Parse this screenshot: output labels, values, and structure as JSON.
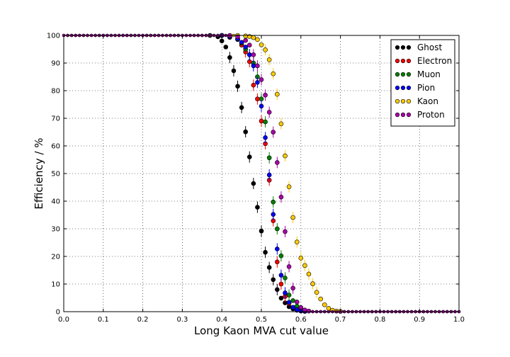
{
  "chart_data": {
    "type": "scatter",
    "title": "",
    "xlabel": "Long Kaon MVA cut value",
    "ylabel": "Efficiency / %",
    "xlim": [
      0.0,
      1.0
    ],
    "ylim": [
      0,
      100
    ],
    "xticks": [
      "0.0",
      "0.1",
      "0.2",
      "0.3",
      "0.4",
      "0.5",
      "0.6",
      "0.7",
      "0.8",
      "0.9",
      "1.0"
    ],
    "yticks": [
      "0",
      "10",
      "20",
      "30",
      "40",
      "50",
      "60",
      "70",
      "80",
      "90",
      "100"
    ],
    "grid": true,
    "legend_position": "top-right",
    "series": [
      {
        "name": "Ghost",
        "color": "#000000",
        "points": [
          [
            0.37,
            100
          ],
          [
            0.39,
            99.5
          ],
          [
            0.4,
            98
          ],
          [
            0.41,
            95.8
          ],
          [
            0.42,
            92
          ],
          [
            0.43,
            87.2
          ],
          [
            0.44,
            81.6
          ],
          [
            0.45,
            73.9
          ],
          [
            0.46,
            65.1
          ],
          [
            0.47,
            56
          ],
          [
            0.48,
            46.4
          ],
          [
            0.49,
            37.8
          ],
          [
            0.5,
            29.2
          ],
          [
            0.51,
            21.5
          ],
          [
            0.52,
            16
          ],
          [
            0.53,
            11.6
          ],
          [
            0.54,
            8
          ],
          [
            0.55,
            4.9
          ],
          [
            0.56,
            3.2
          ],
          [
            0.57,
            1.8
          ],
          [
            0.58,
            1
          ],
          [
            0.59,
            0.6
          ],
          [
            0.6,
            0.3
          ],
          [
            0.61,
            0.1
          ]
        ]
      },
      {
        "name": "Electron",
        "color": "#ff0000",
        "points": [
          [
            0.4,
            100
          ],
          [
            0.42,
            99.3
          ],
          [
            0.44,
            98.5
          ],
          [
            0.45,
            96.5
          ],
          [
            0.46,
            94
          ],
          [
            0.47,
            90.5
          ],
          [
            0.48,
            82
          ],
          [
            0.49,
            77
          ],
          [
            0.5,
            69
          ],
          [
            0.51,
            60.8
          ],
          [
            0.52,
            47.6
          ],
          [
            0.53,
            32.9
          ],
          [
            0.54,
            18
          ],
          [
            0.55,
            10
          ],
          [
            0.56,
            5.5
          ],
          [
            0.57,
            3
          ],
          [
            0.58,
            1.5
          ],
          [
            0.59,
            0.5
          ],
          [
            0.6,
            0.2
          ]
        ]
      },
      {
        "name": "Muon",
        "color": "#008000",
        "points": [
          [
            0.4,
            100
          ],
          [
            0.42,
            99.5
          ],
          [
            0.44,
            98.6
          ],
          [
            0.45,
            97.2
          ],
          [
            0.46,
            95
          ],
          [
            0.47,
            93
          ],
          [
            0.48,
            90
          ],
          [
            0.49,
            85
          ],
          [
            0.5,
            77
          ],
          [
            0.51,
            68.7
          ],
          [
            0.52,
            55.7
          ],
          [
            0.53,
            39.7
          ],
          [
            0.54,
            30
          ],
          [
            0.55,
            20.2
          ],
          [
            0.56,
            12.2
          ],
          [
            0.57,
            6
          ],
          [
            0.58,
            4
          ],
          [
            0.59,
            2
          ],
          [
            0.6,
            1
          ],
          [
            0.61,
            0.4
          ]
        ]
      },
      {
        "name": "Pion",
        "color": "#0000ff",
        "points": [
          [
            0.4,
            100
          ],
          [
            0.42,
            99.6
          ],
          [
            0.44,
            98.8
          ],
          [
            0.45,
            97.5
          ],
          [
            0.46,
            95.8
          ],
          [
            0.47,
            93
          ],
          [
            0.48,
            89
          ],
          [
            0.49,
            83
          ],
          [
            0.5,
            74.4
          ],
          [
            0.51,
            63
          ],
          [
            0.52,
            49.5
          ],
          [
            0.53,
            35.2
          ],
          [
            0.54,
            22.7
          ],
          [
            0.55,
            13.2
          ],
          [
            0.56,
            6.8
          ],
          [
            0.57,
            3.4
          ],
          [
            0.58,
            1.6
          ],
          [
            0.59,
            0.7
          ],
          [
            0.6,
            0.3
          ]
        ]
      },
      {
        "name": "Kaon",
        "color": "#ffcc00",
        "points": [
          [
            0.44,
            100
          ],
          [
            0.46,
            99.8
          ],
          [
            0.47,
            99.6
          ],
          [
            0.48,
            99.2
          ],
          [
            0.49,
            98.5
          ],
          [
            0.5,
            96.6
          ],
          [
            0.51,
            94.8
          ],
          [
            0.52,
            91.2
          ],
          [
            0.53,
            86.1
          ],
          [
            0.54,
            78.7
          ],
          [
            0.55,
            68
          ],
          [
            0.56,
            56.4
          ],
          [
            0.57,
            45.2
          ],
          [
            0.58,
            34.1
          ],
          [
            0.59,
            25.2
          ],
          [
            0.6,
            19.4
          ],
          [
            0.61,
            16.7
          ],
          [
            0.62,
            13.6
          ],
          [
            0.63,
            10.1
          ],
          [
            0.64,
            7
          ],
          [
            0.65,
            4.6
          ],
          [
            0.66,
            2.5
          ],
          [
            0.67,
            1.2
          ],
          [
            0.68,
            0.5
          ],
          [
            0.69,
            0.2
          ],
          [
            0.7,
            0.1
          ]
        ]
      },
      {
        "name": "Proton",
        "color": "#aa00aa",
        "points": [
          [
            0.42,
            100
          ],
          [
            0.44,
            99.5
          ],
          [
            0.46,
            98.2
          ],
          [
            0.47,
            96.5
          ],
          [
            0.48,
            93
          ],
          [
            0.49,
            89
          ],
          [
            0.5,
            84
          ],
          [
            0.51,
            78.4
          ],
          [
            0.52,
            72.2
          ],
          [
            0.53,
            65
          ],
          [
            0.54,
            54
          ],
          [
            0.55,
            41.5
          ],
          [
            0.56,
            29
          ],
          [
            0.57,
            16.3
          ],
          [
            0.58,
            8.5
          ],
          [
            0.59,
            3.5
          ],
          [
            0.6,
            1.5
          ],
          [
            0.61,
            0.6
          ],
          [
            0.62,
            0.2
          ]
        ]
      }
    ]
  }
}
